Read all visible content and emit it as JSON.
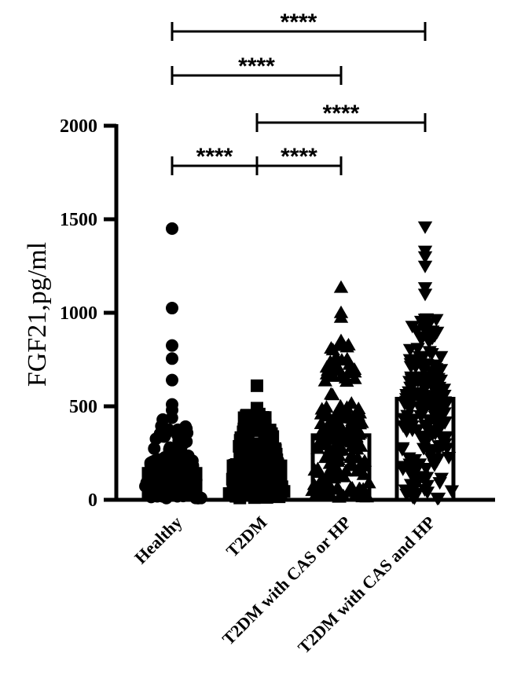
{
  "chart_data": {
    "type": "bar",
    "ylabel": "FGF21,pg/ml",
    "xlabel": "",
    "ylim": [
      0,
      2000
    ],
    "yticks": [
      0,
      500,
      1000,
      1500,
      2000
    ],
    "ytick_labels": [
      "0",
      "500",
      "1000",
      "1500",
      "2000"
    ],
    "categories": [
      "Healthy",
      "T2DM",
      "T2DM with CAS or HP",
      "T2DM with CAS and HP"
    ],
    "values": [
      165,
      205,
      345,
      540
    ],
    "marker_shapes": [
      "circle",
      "square",
      "triangle-up",
      "triangle-down"
    ],
    "outliers": [
      [
        1450,
        1025,
        825,
        755,
        640,
        510,
        480
      ],
      [
        610,
        490,
        470
      ],
      [
        1135,
        1000,
        975,
        850
      ],
      [
        1460,
        1330,
        1300,
        1250,
        1135,
        1100
      ]
    ],
    "point_max": [
      440,
      470,
      830,
      1000
    ],
    "comparisons": [
      {
        "from": 0,
        "to": 3,
        "label": "****"
      },
      {
        "from": 0,
        "to": 2,
        "label": "****"
      },
      {
        "from": 1,
        "to": 3,
        "label": "****"
      },
      {
        "from": 0,
        "to": 1,
        "label": "****"
      },
      {
        "from": 1,
        "to": 2,
        "label": "****"
      }
    ],
    "grid": false,
    "colors": {
      "bars": "#000000",
      "points": "#000000",
      "background": "#ffffff"
    }
  }
}
